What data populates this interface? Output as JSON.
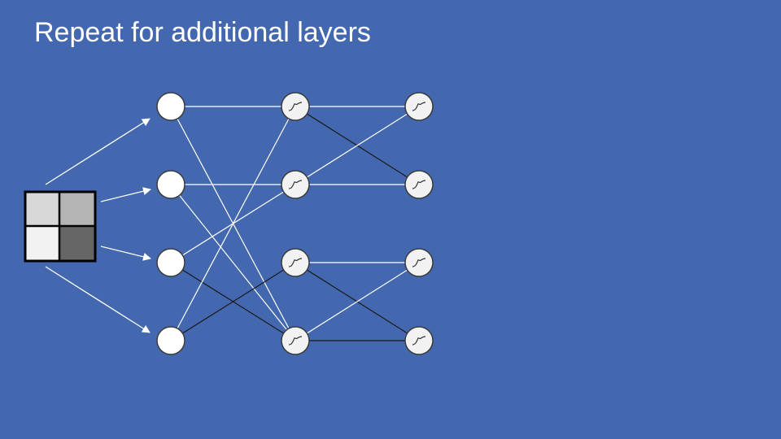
{
  "slide": {
    "title": "Repeat for additional layers"
  },
  "diagram": {
    "input_image": {
      "pixels": [
        [
          "#d8d8d8",
          "#b4b4b4"
        ],
        [
          "#f2f2f2",
          "#666666"
        ]
      ]
    },
    "layers": [
      {
        "name": "input-nodes",
        "count": 4,
        "activation": "none"
      },
      {
        "name": "hidden-layer-1",
        "count": 4,
        "activation": "sigmoid"
      },
      {
        "name": "hidden-layer-2",
        "count": 4,
        "activation": "sigmoid"
      }
    ],
    "connections_1_to_2": [
      {
        "from": 0,
        "to": 0,
        "color": "white"
      },
      {
        "from": 0,
        "to": 3,
        "color": "white"
      },
      {
        "from": 1,
        "to": 1,
        "color": "white"
      },
      {
        "from": 1,
        "to": 3,
        "color": "white"
      },
      {
        "from": 2,
        "to": 1,
        "color": "white"
      },
      {
        "from": 2,
        "to": 3,
        "color": "black"
      },
      {
        "from": 3,
        "to": 0,
        "color": "white"
      },
      {
        "from": 3,
        "to": 2,
        "color": "black"
      }
    ],
    "connections_2_to_3": [
      {
        "from": 0,
        "to": 0,
        "color": "white"
      },
      {
        "from": 0,
        "to": 1,
        "color": "black"
      },
      {
        "from": 1,
        "to": 0,
        "color": "white"
      },
      {
        "from": 1,
        "to": 1,
        "color": "white"
      },
      {
        "from": 2,
        "to": 2,
        "color": "white"
      },
      {
        "from": 2,
        "to": 3,
        "color": "black"
      },
      {
        "from": 3,
        "to": 2,
        "color": "white"
      },
      {
        "from": 3,
        "to": 3,
        "color": "black"
      }
    ],
    "colors": {
      "background": "#4468b0",
      "white_edge": "#ffffff",
      "black_edge": "#1a1a1a",
      "input_node_fill": "#ffffff",
      "sigmoid_node_fill": "#f2f2f2",
      "node_stroke": "#3a3a3a"
    }
  }
}
